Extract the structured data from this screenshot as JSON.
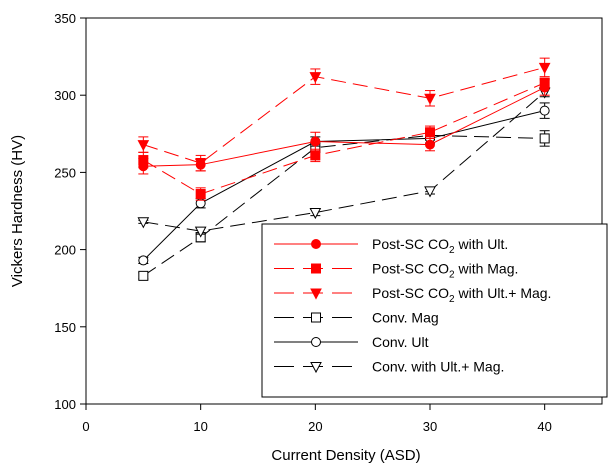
{
  "chart_data": {
    "type": "line",
    "xlabel": "Current Density (ASD)",
    "ylabel": "Vickers Hardness (HV)",
    "xlim": [
      0,
      45
    ],
    "ylim": [
      100,
      350
    ],
    "xticks": [
      0,
      10,
      20,
      30,
      40
    ],
    "yticks": [
      100,
      150,
      200,
      250,
      300,
      350
    ],
    "x": [
      5,
      10,
      20,
      30,
      40
    ],
    "grid": false,
    "legend_position": "bottom-right",
    "series": [
      {
        "name": "Post-SC CO2 with Ult.",
        "label_main": "Post-SC CO",
        "label_sub": "2",
        "label_rest": " with Ult.",
        "values": [
          254,
          255,
          270,
          268,
          305
        ],
        "errors": [
          5,
          4,
          6,
          4,
          5
        ],
        "color": "#ff0000",
        "dash": "solid",
        "marker": "circle-filled"
      },
      {
        "name": "Post-SC CO2 with Mag.",
        "label_main": "Post-SC CO",
        "label_sub": "2",
        "label_rest": " with Mag.",
        "values": [
          258,
          236,
          261,
          276,
          308
        ],
        "errors": [
          5,
          4,
          4,
          4,
          3
        ],
        "color": "#ff0000",
        "dash": "longdash",
        "marker": "square-filled"
      },
      {
        "name": "Post-SC CO2 with Ult.+ Mag.",
        "label_main": "Post-SC CO",
        "label_sub": "2",
        "label_rest": " with Ult.+ Mag.",
        "values": [
          268,
          256,
          312,
          298,
          318
        ],
        "errors": [
          5,
          5,
          5,
          5,
          6
        ],
        "color": "#ff0000",
        "dash": "longdash",
        "marker": "triangle-down-filled"
      },
      {
        "name": "Conv. Mag",
        "label_main": "Conv. Mag",
        "label_sub": "",
        "label_rest": "",
        "values": [
          183,
          208,
          266,
          274,
          272
        ],
        "errors": [
          2,
          3,
          3,
          3,
          5
        ],
        "color": "#000000",
        "dash": "longdash",
        "marker": "square-open"
      },
      {
        "name": "Conv. Ult",
        "label_main": "Conv. Ult",
        "label_sub": "",
        "label_rest": "",
        "values": [
          193,
          230,
          270,
          272,
          290
        ],
        "errors": [
          2,
          3,
          3,
          3,
          5
        ],
        "color": "#000000",
        "dash": "solid",
        "marker": "circle-open"
      },
      {
        "name": "Conv. with Ult.+ Mag.",
        "label_main": "Conv. with Ult.+ Mag.",
        "label_sub": "",
        "label_rest": "",
        "values": [
          218,
          212,
          224,
          238,
          302
        ],
        "errors": [
          1,
          2,
          2,
          2,
          3
        ],
        "color": "#000000",
        "dash": "longdash",
        "marker": "triangle-down-open"
      }
    ]
  }
}
